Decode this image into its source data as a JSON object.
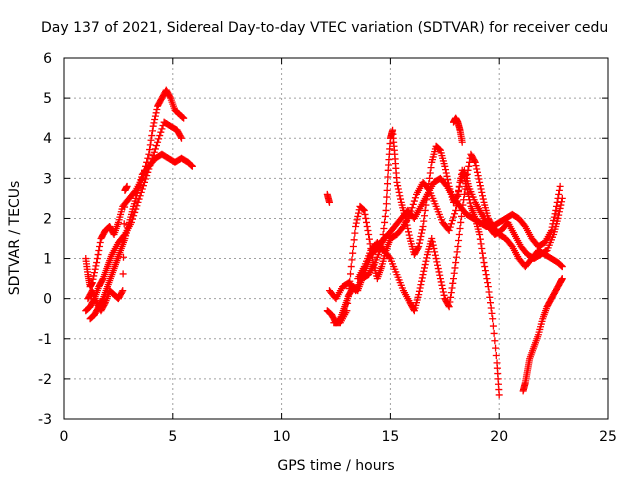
{
  "chart_data": {
    "type": "scatter",
    "title": "Day 137 of 2021, Sidereal Day-to-day VTEC variation (SDTVAR) for receiver cedu",
    "xlabel": "GPS time / hours",
    "ylabel": "SDTVAR / TECUs",
    "xlim": [
      0,
      25
    ],
    "ylim": [
      -3,
      6
    ],
    "xticks": [
      "0",
      "5",
      "10",
      "15",
      "20",
      "25"
    ],
    "yticks": [
      "-3",
      "-2",
      "-1",
      "0",
      "1",
      "2",
      "3",
      "4",
      "5",
      "6"
    ],
    "grid": true,
    "marker": "+",
    "color": "#ff0000",
    "series": [
      {
        "points": [
          [
            1.0,
            1.0
          ],
          [
            1.1,
            0.6
          ],
          [
            1.2,
            0.3
          ],
          [
            1.3,
            0.4
          ],
          [
            1.5,
            0.9
          ],
          [
            1.7,
            1.5
          ],
          [
            1.9,
            1.7
          ],
          [
            2.1,
            1.8
          ],
          [
            2.3,
            1.6
          ],
          [
            2.5,
            1.9
          ],
          [
            2.7,
            2.3
          ],
          [
            3.0,
            2.5
          ],
          [
            3.3,
            2.7
          ],
          [
            3.6,
            3.0
          ],
          [
            3.9,
            3.6
          ],
          [
            4.1,
            4.3
          ],
          [
            4.3,
            4.8
          ],
          [
            4.5,
            5.0
          ],
          [
            4.7,
            5.2
          ],
          [
            4.9,
            5.0
          ],
          [
            5.1,
            4.7
          ],
          [
            5.3,
            4.6
          ],
          [
            5.5,
            4.5
          ]
        ]
      },
      {
        "points": [
          [
            1.0,
            -0.3
          ],
          [
            1.2,
            -0.2
          ],
          [
            1.4,
            0.0
          ],
          [
            1.6,
            0.3
          ],
          [
            1.8,
            0.5
          ],
          [
            2.0,
            0.8
          ],
          [
            2.2,
            1.1
          ],
          [
            2.5,
            1.4
          ],
          [
            2.8,
            1.6
          ],
          [
            3.1,
            1.9
          ],
          [
            3.4,
            2.4
          ],
          [
            3.7,
            2.9
          ],
          [
            4.0,
            3.4
          ],
          [
            4.3,
            3.9
          ],
          [
            4.6,
            4.4
          ],
          [
            4.9,
            4.3
          ],
          [
            5.2,
            4.2
          ],
          [
            5.4,
            4.0
          ]
        ]
      },
      {
        "points": [
          [
            1.2,
            -0.5
          ],
          [
            1.4,
            -0.4
          ],
          [
            1.6,
            -0.2
          ],
          [
            1.8,
            0.0
          ],
          [
            2.0,
            0.3
          ],
          [
            2.2,
            0.6
          ],
          [
            2.4,
            0.9
          ],
          [
            2.6,
            1.2
          ],
          [
            2.8,
            1.5
          ],
          [
            3.0,
            1.9
          ],
          [
            3.2,
            2.3
          ],
          [
            3.4,
            2.7
          ],
          [
            3.6,
            3.1
          ],
          [
            3.9,
            3.3
          ],
          [
            4.2,
            3.5
          ],
          [
            4.5,
            3.6
          ],
          [
            4.8,
            3.5
          ],
          [
            5.1,
            3.4
          ],
          [
            5.4,
            3.5
          ],
          [
            5.7,
            3.4
          ],
          [
            5.9,
            3.3
          ]
        ]
      },
      {
        "points": [
          [
            1.1,
            0.0
          ],
          [
            1.3,
            0.2
          ],
          [
            1.5,
            -0.1
          ],
          [
            1.7,
            -0.3
          ],
          [
            1.9,
            -0.1
          ],
          [
            2.1,
            0.2
          ],
          [
            2.3,
            0.1
          ],
          [
            2.5,
            0.0
          ],
          [
            2.7,
            0.2
          ],
          [
            2.8,
            2.7
          ],
          [
            2.9,
            2.8
          ]
        ]
      },
      {
        "points": [
          [
            12.1,
            2.6
          ],
          [
            12.2,
            2.4
          ]
        ]
      },
      {
        "points": [
          [
            12.1,
            -0.3
          ],
          [
            12.3,
            -0.4
          ],
          [
            12.5,
            -0.6
          ],
          [
            12.7,
            -0.5
          ],
          [
            12.9,
            -0.2
          ],
          [
            13.1,
            0.1
          ],
          [
            13.3,
            0.3
          ],
          [
            13.5,
            0.2
          ],
          [
            13.7,
            0.5
          ],
          [
            13.9,
            0.8
          ],
          [
            14.1,
            1.1
          ],
          [
            14.3,
            1.2
          ],
          [
            14.5,
            1.3
          ],
          [
            14.7,
            1.5
          ],
          [
            14.9,
            1.6
          ],
          [
            15.2,
            1.8
          ],
          [
            15.5,
            2.0
          ],
          [
            15.8,
            2.2
          ],
          [
            16.1,
            2.0
          ],
          [
            16.4,
            2.3
          ],
          [
            16.7,
            2.6
          ],
          [
            17.0,
            2.9
          ],
          [
            17.3,
            3.0
          ],
          [
            17.6,
            2.8
          ],
          [
            17.9,
            2.5
          ],
          [
            18.2,
            2.3
          ],
          [
            18.5,
            2.1
          ],
          [
            18.8,
            2.0
          ],
          [
            19.1,
            1.9
          ],
          [
            19.4,
            1.8
          ],
          [
            19.7,
            1.8
          ],
          [
            20.0,
            1.9
          ],
          [
            20.3,
            2.0
          ],
          [
            20.6,
            2.1
          ],
          [
            20.9,
            2.0
          ],
          [
            21.2,
            1.8
          ],
          [
            21.5,
            1.5
          ],
          [
            21.8,
            1.3
          ],
          [
            22.1,
            1.4
          ],
          [
            22.4,
            1.7
          ],
          [
            22.6,
            2.2
          ],
          [
            22.8,
            2.8
          ]
        ]
      },
      {
        "points": [
          [
            12.2,
            0.2
          ],
          [
            12.5,
            0.0
          ],
          [
            12.8,
            0.3
          ],
          [
            13.1,
            0.4
          ],
          [
            13.4,
            0.2
          ],
          [
            13.7,
            0.5
          ],
          [
            14.0,
            0.6
          ],
          [
            14.3,
            0.9
          ],
          [
            14.6,
            1.3
          ],
          [
            14.8,
            2.2
          ],
          [
            14.9,
            3.2
          ],
          [
            15.0,
            4.0
          ],
          [
            15.1,
            4.2
          ],
          [
            15.2,
            3.6
          ],
          [
            15.3,
            2.9
          ],
          [
            15.5,
            2.4
          ],
          [
            15.7,
            2.0
          ],
          [
            15.9,
            1.5
          ],
          [
            16.1,
            1.1
          ],
          [
            16.3,
            1.3
          ],
          [
            16.5,
            1.8
          ],
          [
            16.7,
            2.6
          ],
          [
            16.9,
            3.4
          ],
          [
            17.1,
            3.8
          ],
          [
            17.3,
            3.7
          ],
          [
            17.5,
            3.3
          ],
          [
            17.7,
            2.8
          ],
          [
            17.9,
            2.4
          ],
          [
            18.1,
            2.6
          ],
          [
            18.3,
            3.2
          ],
          [
            18.5,
            2.8
          ],
          [
            18.7,
            2.3
          ],
          [
            18.9,
            2.0
          ],
          [
            19.1,
            1.6
          ],
          [
            19.3,
            0.9
          ],
          [
            19.5,
            0.3
          ],
          [
            19.7,
            -0.5
          ],
          [
            19.9,
            -1.6
          ],
          [
            20.0,
            -2.4
          ]
        ]
      },
      {
        "points": [
          [
            12.4,
            -0.6
          ],
          [
            12.7,
            -0.6
          ],
          [
            13.0,
            -0.3
          ],
          [
            13.2,
            0.8
          ],
          [
            13.4,
            1.8
          ],
          [
            13.6,
            2.3
          ],
          [
            13.8,
            2.2
          ],
          [
            14.0,
            1.6
          ],
          [
            14.2,
            0.9
          ],
          [
            14.4,
            0.5
          ],
          [
            14.6,
            0.8
          ],
          [
            14.8,
            1.2
          ],
          [
            15.0,
            1.5
          ],
          [
            15.3,
            1.6
          ],
          [
            15.6,
            1.8
          ],
          [
            15.9,
            2.1
          ],
          [
            16.2,
            2.6
          ],
          [
            16.5,
            2.9
          ],
          [
            16.8,
            2.7
          ],
          [
            17.1,
            2.3
          ],
          [
            17.4,
            1.9
          ],
          [
            17.7,
            1.7
          ],
          [
            18.0,
            2.2
          ],
          [
            18.2,
            2.9
          ],
          [
            18.4,
            3.2
          ],
          [
            18.6,
            2.8
          ],
          [
            18.9,
            2.4
          ],
          [
            19.2,
            2.1
          ],
          [
            19.5,
            1.8
          ],
          [
            19.8,
            1.6
          ],
          [
            20.1,
            1.7
          ],
          [
            20.4,
            1.9
          ],
          [
            20.7,
            1.6
          ],
          [
            21.0,
            1.3
          ],
          [
            21.3,
            1.1
          ],
          [
            21.6,
            1.0
          ],
          [
            21.9,
            1.1
          ],
          [
            22.2,
            1.2
          ],
          [
            22.5,
            1.6
          ],
          [
            22.7,
            2.0
          ],
          [
            22.9,
            2.5
          ]
        ]
      },
      {
        "points": [
          [
            13.5,
            0.5
          ],
          [
            13.8,
            0.8
          ],
          [
            14.1,
            1.2
          ],
          [
            14.4,
            1.4
          ],
          [
            14.7,
            1.2
          ],
          [
            15.0,
            1.0
          ],
          [
            15.3,
            0.6
          ],
          [
            15.6,
            0.2
          ],
          [
            15.9,
            -0.1
          ],
          [
            16.1,
            -0.3
          ],
          [
            16.3,
            0.1
          ],
          [
            16.5,
            0.6
          ],
          [
            16.7,
            1.1
          ],
          [
            16.9,
            1.5
          ],
          [
            17.1,
            1.0
          ],
          [
            17.3,
            0.5
          ],
          [
            17.5,
            0.0
          ],
          [
            17.7,
            -0.2
          ],
          [
            17.9,
            0.5
          ],
          [
            18.1,
            1.3
          ],
          [
            18.3,
            2.2
          ],
          [
            18.5,
            3.0
          ],
          [
            18.7,
            3.6
          ],
          [
            18.9,
            3.4
          ],
          [
            19.1,
            2.9
          ],
          [
            19.3,
            2.4
          ],
          [
            19.5,
            2.0
          ],
          [
            19.7,
            1.8
          ],
          [
            20.0,
            1.6
          ],
          [
            20.3,
            1.5
          ],
          [
            20.6,
            1.3
          ],
          [
            20.9,
            1.0
          ],
          [
            21.2,
            0.8
          ],
          [
            21.5,
            1.0
          ],
          [
            21.8,
            1.2
          ],
          [
            22.1,
            1.1
          ],
          [
            22.4,
            1.0
          ],
          [
            22.7,
            0.9
          ],
          [
            22.9,
            0.8
          ]
        ]
      },
      {
        "points": [
          [
            17.9,
            4.4
          ],
          [
            18.0,
            4.5
          ],
          [
            18.1,
            4.4
          ],
          [
            18.2,
            4.2
          ],
          [
            18.3,
            3.9
          ]
        ]
      },
      {
        "points": [
          [
            21.1,
            -2.3
          ],
          [
            21.2,
            -2.1
          ],
          [
            21.3,
            -1.8
          ],
          [
            21.4,
            -1.5
          ],
          [
            21.6,
            -1.2
          ],
          [
            21.8,
            -0.9
          ],
          [
            22.0,
            -0.5
          ],
          [
            22.2,
            -0.2
          ],
          [
            22.4,
            0.0
          ],
          [
            22.6,
            0.2
          ],
          [
            22.8,
            0.4
          ],
          [
            22.9,
            0.5
          ]
        ]
      }
    ]
  }
}
